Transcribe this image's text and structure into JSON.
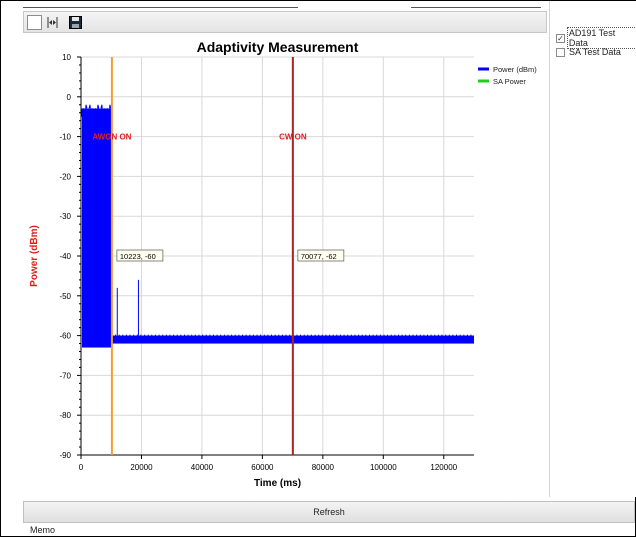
{
  "window": {
    "memo_label": "Memo",
    "refresh_label": "Refresh"
  },
  "toolbar": {
    "icons": [
      "select-icon",
      "fit-icon",
      "save-icon"
    ]
  },
  "datasets": {
    "items": [
      {
        "label": "AD191 Test Data",
        "checked": true
      },
      {
        "label": "SA Test Data",
        "checked": false
      }
    ]
  },
  "chart_data": {
    "type": "line",
    "title": "Adaptivity Measurement",
    "xlabel": "Time (ms)",
    "ylabel": "Power (dBm)",
    "xlim": [
      0,
      130000
    ],
    "ylim": [
      -90,
      10
    ],
    "x_ticks": [
      "0",
      "20000",
      "40000",
      "60000",
      "80000",
      "100000",
      "120000"
    ],
    "x_tick_values": [
      0,
      20000,
      40000,
      60000,
      80000,
      100000,
      120000
    ],
    "y_ticks": [
      "10",
      "0",
      "-10",
      "-20",
      "-30",
      "-40",
      "-50",
      "-60",
      "-70",
      "-80",
      "-90"
    ],
    "y_tick_values": [
      10,
      0,
      -10,
      -20,
      -30,
      -40,
      -50,
      -60,
      -70,
      -80,
      -90
    ],
    "grid": true,
    "legend_position": "top-right",
    "legend": [
      {
        "name": "Power (dBm)",
        "color": "#0000ff"
      },
      {
        "name": "SA Power",
        "color": "#22cc22"
      }
    ],
    "series": [
      {
        "name": "Power (dBm)",
        "color": "#0000ff",
        "bursts": [
          {
            "x_start": 0,
            "x_end": 10223,
            "y_low": -63,
            "y_high": -3
          }
        ],
        "spikes": [
          {
            "x": 12000,
            "y": -48
          },
          {
            "x": 19000,
            "y": -46
          }
        ],
        "baseline": {
          "x_start": 10223,
          "x_end": 130000,
          "y_low": -62,
          "y_high": -60
        }
      }
    ],
    "markers": [
      {
        "x": 10223,
        "label": "AWGN ON",
        "color": "#f0a030",
        "text_color": "#e02020",
        "label_y": -10
      },
      {
        "x": 70077,
        "label": "CW ON",
        "color": "#b02020",
        "text_color": "#e02020",
        "label_y": -10
      }
    ],
    "annotations": [
      {
        "x": 10223,
        "y": -40,
        "text": "10223, -60"
      },
      {
        "x": 70077,
        "y": -40,
        "text": "70077, -62"
      }
    ],
    "colors": {
      "title": "#000000",
      "ylabel": "#e02020",
      "grid": "#d8d8d8",
      "axis": "#000000"
    }
  }
}
